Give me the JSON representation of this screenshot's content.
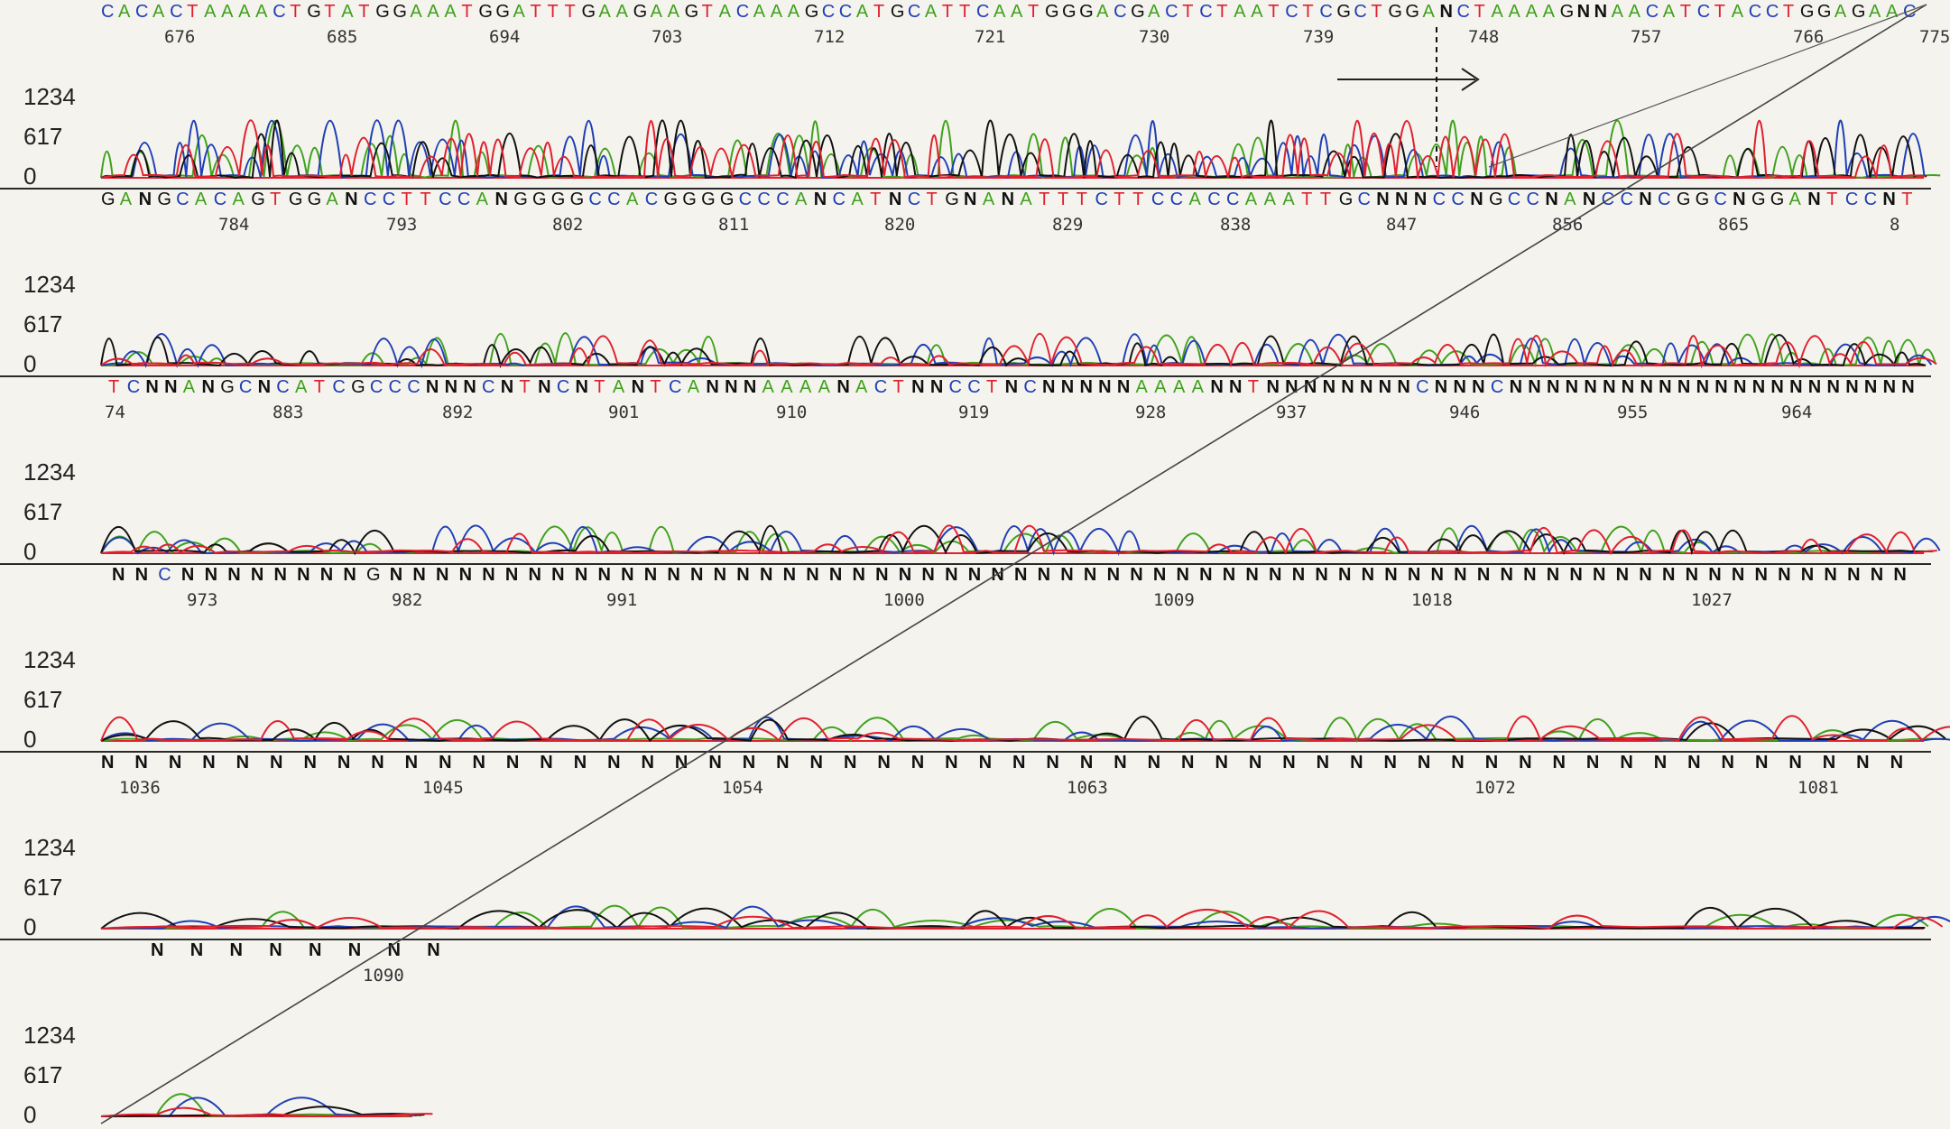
{
  "y_ticks": [
    "1234",
    "617",
    "0"
  ],
  "colors": {
    "A": "#3fa11c",
    "C": "#1f3fb5",
    "G": "#111111",
    "T": "#e0202e",
    "N": "#111111"
  },
  "chart_data": {
    "type": "line",
    "description": "Sanger sequencing chromatogram, four fluorescence traces (A green, C blue, G black, T red)",
    "ylim": [
      0,
      1234
    ],
    "rows": [
      {
        "sequence": "CACACTAAAACTGTATGGAAATGGATTTGAAGAAGTACAAAGCCATGCATTCAATGGGACGACTCTAATCTCGCTGGANCTAAAAGNNAACATCTACCTGGAGAAC",
        "positions": [
          "676",
          "685",
          "694",
          "703",
          "712",
          "721",
          "730",
          "739",
          "748",
          "757",
          "766",
          "775"
        ]
      },
      {
        "sequence": "GANGCACAGTGGANCCTTCCANGGGGCCACGGGGCCCANCATNCTGNANATTTCTTCCACCAAATTGCNNNCCNGCCNANCCNCGGCNGGANTCCNT",
        "positions": [
          "784",
          "793",
          "802",
          "811",
          "820",
          "829",
          "838",
          "847",
          "856",
          "865",
          "8"
        ]
      },
      {
        "sequence": "TCNNANGCNCATCGCCCNNNCNTNCNTANTCANNNAAAANACTNNCCTNCNNNNNAAAANNTNNNNNNNNCNNNCNNNNNNNNNNNNNNNNNNNNNN",
        "positions": [
          "74",
          "883",
          "892",
          "901",
          "910",
          "919",
          "928",
          "937",
          "946",
          "955",
          "964"
        ]
      },
      {
        "sequence": "NNCNNNNNNNNGNNNNNNNNNNNNNNNNNNNNNNNNNNNNNNNNNNNNNNNNNNNNNNNNNNNNNNNNNNNNNNNNNN",
        "positions": [
          "973",
          "982",
          "991",
          "1000",
          "1009",
          "1018",
          "1027"
        ]
      },
      {
        "sequence": "NNNNNNNNNNNNNNNNNNNNNNNNNNNNNNNNNNNNNNNNNNNNNNNNNNNNNN",
        "positions": [
          "1036",
          "1045",
          "1054",
          "1063",
          "1072",
          "1081"
        ]
      },
      {
        "sequence": "NNNNNNNN",
        "positions": [
          "1090"
        ]
      }
    ],
    "traces": [
      "A",
      "C",
      "G",
      "T"
    ]
  }
}
